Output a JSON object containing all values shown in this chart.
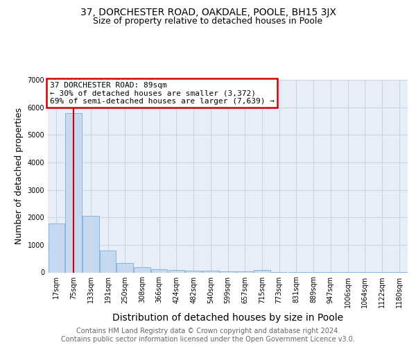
{
  "title1": "37, DORCHESTER ROAD, OAKDALE, POOLE, BH15 3JX",
  "title2": "Size of property relative to detached houses in Poole",
  "xlabel": "Distribution of detached houses by size in Poole",
  "ylabel": "Number of detached properties",
  "bar_labels": [
    "17sqm",
    "75sqm",
    "133sqm",
    "191sqm",
    "250sqm",
    "308sqm",
    "366sqm",
    "424sqm",
    "482sqm",
    "540sqm",
    "599sqm",
    "657sqm",
    "715sqm",
    "773sqm",
    "831sqm",
    "889sqm",
    "947sqm",
    "1006sqm",
    "1064sqm",
    "1122sqm",
    "1180sqm"
  ],
  "bar_values": [
    1780,
    5800,
    2060,
    790,
    345,
    195,
    110,
    90,
    70,
    55,
    50,
    45,
    90,
    4,
    4,
    4,
    4,
    4,
    4,
    4,
    4
  ],
  "bar_color": "#c6d9f0",
  "bar_edgecolor": "#7aaedc",
  "grid_color": "#c8d4e8",
  "background_color": "#e8eef8",
  "vline_color": "#cc0000",
  "vline_pos": 1.0,
  "annotation_line1": "37 DORCHESTER ROAD: 89sqm",
  "annotation_line2": "← 30% of detached houses are smaller (3,372)",
  "annotation_line3": "69% of semi-detached houses are larger (7,639) →",
  "annotation_box_edgecolor": "#cc0000",
  "ylim_max": 7000,
  "yticks": [
    0,
    1000,
    2000,
    3000,
    4000,
    5000,
    6000,
    7000
  ],
  "footer_text": "Contains HM Land Registry data © Crown copyright and database right 2024.\nContains public sector information licensed under the Open Government Licence v3.0.",
  "title1_fontsize": 10,
  "title2_fontsize": 9,
  "xlabel_fontsize": 10,
  "ylabel_fontsize": 9,
  "tick_fontsize": 7,
  "annotation_fontsize": 8,
  "footer_fontsize": 7
}
